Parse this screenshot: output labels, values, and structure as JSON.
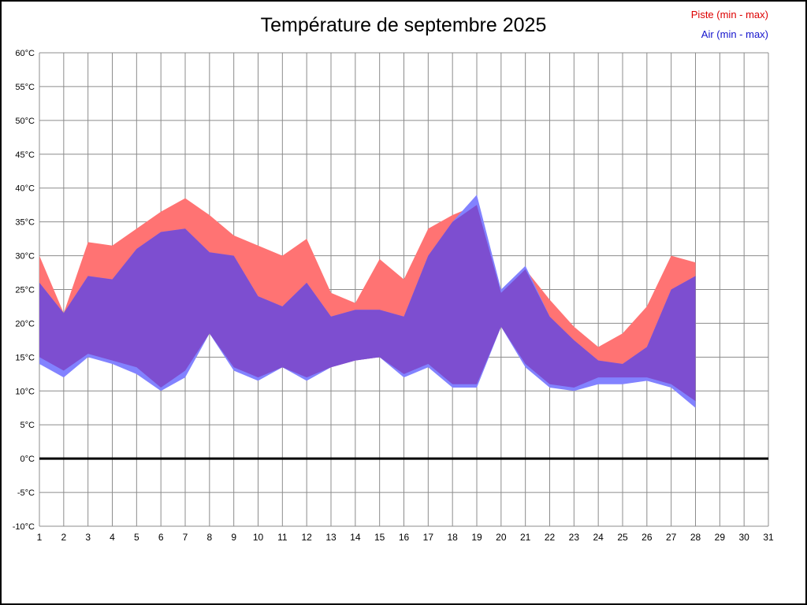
{
  "chart_data": {
    "type": "area",
    "title": "Température de septembre 2025",
    "x": [
      1,
      2,
      3,
      4,
      5,
      6,
      7,
      8,
      9,
      10,
      11,
      12,
      13,
      14,
      15,
      16,
      17,
      18,
      19,
      20,
      21,
      22,
      23,
      24,
      25,
      26,
      27,
      28
    ],
    "xlim": [
      1,
      31
    ],
    "ylim": [
      -10,
      60
    ],
    "xticks": [
      1,
      2,
      3,
      4,
      5,
      6,
      7,
      8,
      9,
      10,
      11,
      12,
      13,
      14,
      15,
      16,
      17,
      18,
      19,
      20,
      21,
      22,
      23,
      24,
      25,
      26,
      27,
      28,
      29,
      30,
      31
    ],
    "yticks": [
      60,
      55,
      50,
      45,
      40,
      35,
      30,
      25,
      20,
      15,
      10,
      5,
      0,
      -5,
      -10
    ],
    "y_suffix": "°C",
    "grid_on": true,
    "grid_color": "#8c8c8c",
    "axis_text_color": "#000000",
    "zero_line_value": 0,
    "zero_line_color": "#000000",
    "overlap_fill": "#7d4ed0",
    "legend_position": "top-right",
    "series": [
      {
        "name": "Piste (min - max)",
        "fill": "#ff7373",
        "text_color": "#dd0000",
        "min": [
          15,
          13,
          15.5,
          14.5,
          13.5,
          10.5,
          13,
          18.5,
          13.5,
          12,
          13.5,
          12,
          13.5,
          14.5,
          15,
          12.5,
          14,
          11,
          11,
          19.5,
          14,
          11,
          10.5,
          12,
          12,
          12,
          11,
          8.5
        ],
        "max": [
          30,
          21.5,
          32,
          31.5,
          34,
          36.5,
          38.5,
          36,
          33,
          31.5,
          30,
          32.5,
          24.5,
          23,
          29.5,
          26.5,
          34,
          36,
          37.5,
          24.5,
          28,
          23.5,
          19.5,
          16.5,
          18.5,
          22.5,
          30,
          29
        ]
      },
      {
        "name": "Air (min - max)",
        "fill": "#8282ff",
        "text_color": "#1414cc",
        "min": [
          14,
          12,
          15,
          14,
          12.5,
          10,
          12,
          18.5,
          13,
          11.5,
          13.5,
          11.5,
          13.5,
          14.5,
          15,
          12,
          13.5,
          10.5,
          10.5,
          19.5,
          13.5,
          10.5,
          10,
          11,
          11,
          11.5,
          10.5,
          7.5
        ],
        "max": [
          26,
          21.5,
          27,
          26.5,
          31,
          33.5,
          34,
          30.5,
          30,
          24,
          22.5,
          26,
          21,
          22,
          22,
          21,
          30,
          35,
          39,
          25,
          28.5,
          21,
          17.5,
          14.5,
          14,
          16.5,
          25,
          27
        ]
      }
    ]
  }
}
